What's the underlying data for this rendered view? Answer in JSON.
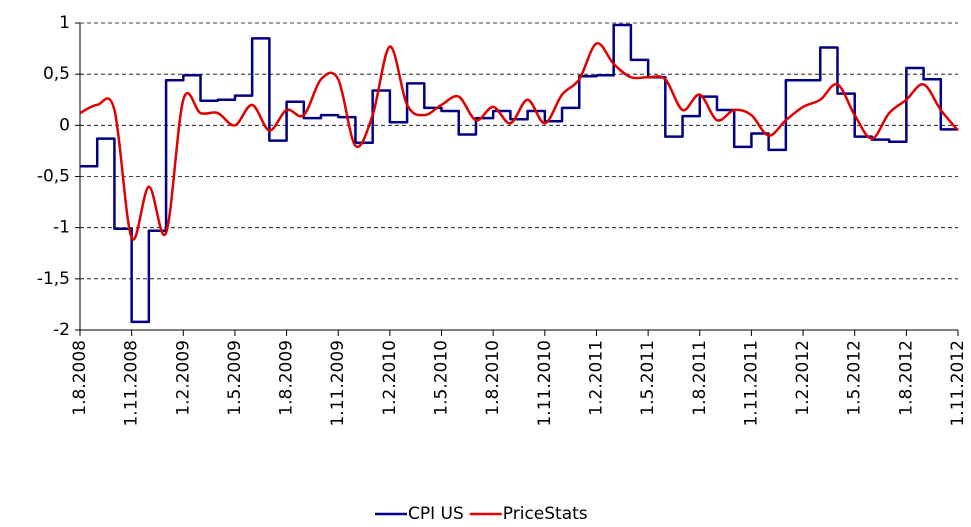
{
  "chart_data": {
    "type": "line",
    "xlim": [
      "1.8.2008",
      "1.11.2012"
    ],
    "xticks": [
      "1.8.2008",
      "1.11.2008",
      "1.2.2009",
      "1.5.2009",
      "1.8.2009",
      "1.11.2009",
      "1.2.2010",
      "1.5.2010",
      "1.8.2010",
      "1.11.2010",
      "1.2.2011",
      "1.5.2011",
      "1.8.2011",
      "1.11.2011",
      "1.2.2012",
      "1.5.2012",
      "1.8.2012",
      "1.11.2012"
    ],
    "ylim": [
      -2,
      1
    ],
    "yticks": [
      {
        "value": -2,
        "label": "-2"
      },
      {
        "value": -1.5,
        "label": "-1,5"
      },
      {
        "value": -1,
        "label": "-1"
      },
      {
        "value": -0.5,
        "label": "-0,5"
      },
      {
        "value": 0,
        "label": "0"
      },
      {
        "value": 0.5,
        "label": "0,5"
      },
      {
        "value": 1,
        "label": "1"
      }
    ],
    "grid": true,
    "legend": "bottom",
    "series": [
      {
        "name": "CPI US",
        "color": "#000080",
        "step": true,
        "x": [
          "1.8.2008",
          "1.9.2008",
          "1.10.2008",
          "1.11.2008",
          "1.12.2008",
          "1.1.2009",
          "1.2.2009",
          "1.3.2009",
          "1.4.2009",
          "1.5.2009",
          "1.6.2009",
          "1.7.2009",
          "1.8.2009",
          "1.9.2009",
          "1.10.2009",
          "1.11.2009",
          "1.12.2009",
          "1.1.2010",
          "1.2.2010",
          "1.3.2010",
          "1.4.2010",
          "1.5.2010",
          "1.6.2010",
          "1.7.2010",
          "1.8.2010",
          "1.9.2010",
          "1.10.2010",
          "1.11.2010",
          "1.12.2010",
          "1.1.2011",
          "1.2.2011",
          "1.3.2011",
          "1.4.2011",
          "1.5.2011",
          "1.6.2011",
          "1.7.2011",
          "1.8.2011",
          "1.9.2011",
          "1.10.2011",
          "1.11.2011",
          "1.12.2011",
          "1.1.2012",
          "1.2.2012",
          "1.3.2012",
          "1.4.2012",
          "1.5.2012",
          "1.6.2012",
          "1.7.2012",
          "1.8.2012",
          "1.9.2012",
          "1.10.2012"
        ],
        "values": [
          -0.4,
          -0.13,
          -1.01,
          -1.92,
          -1.03,
          0.44,
          0.49,
          0.24,
          0.25,
          0.29,
          0.85,
          -0.15,
          0.23,
          0.07,
          0.1,
          0.08,
          -0.17,
          0.34,
          0.03,
          0.41,
          0.17,
          0.14,
          -0.09,
          0.07,
          0.14,
          0.06,
          0.14,
          0.04,
          0.17,
          0.48,
          0.49,
          0.98,
          0.64,
          0.47,
          -0.11,
          0.09,
          0.28,
          0.15,
          -0.21,
          -0.08,
          -0.24,
          0.44,
          0.44,
          0.76,
          0.31,
          -0.11,
          -0.14,
          -0.16,
          0.56,
          0.45,
          -0.04
        ]
      },
      {
        "name": "PriceStats",
        "color": "#e00000",
        "x": [
          "1.8.2008",
          "1.9.2008",
          "1.10.2008",
          "1.11.2008",
          "1.12.2008",
          "1.1.2009",
          "1.2.2009",
          "1.3.2009",
          "1.4.2009",
          "1.5.2009",
          "1.6.2009",
          "1.7.2009",
          "1.8.2009",
          "1.9.2009",
          "1.10.2009",
          "1.11.2009",
          "1.12.2009",
          "1.1.2010",
          "1.2.2010",
          "1.3.2010",
          "1.4.2010",
          "1.5.2010",
          "1.6.2010",
          "1.7.2010",
          "1.8.2010",
          "1.9.2010",
          "1.10.2010",
          "1.11.2010",
          "1.12.2010",
          "1.1.2011",
          "1.2.2011",
          "1.3.2011",
          "1.4.2011",
          "1.5.2011",
          "1.6.2011",
          "1.7.2011",
          "1.8.2011",
          "1.9.2011",
          "1.10.2011",
          "1.11.2011",
          "1.12.2011",
          "1.1.2012",
          "1.2.2012",
          "1.3.2012",
          "1.4.2012",
          "1.5.2012",
          "1.6.2012",
          "1.7.2012",
          "1.8.2012",
          "1.9.2012",
          "1.10.2012",
          "1.11.2012"
        ],
        "values": [
          0.12,
          0.2,
          0.15,
          -1.1,
          -0.6,
          -1.05,
          0.25,
          0.12,
          0.12,
          0.0,
          0.2,
          -0.05,
          0.15,
          0.1,
          0.45,
          0.45,
          -0.2,
          0.1,
          0.77,
          0.2,
          0.1,
          0.2,
          0.28,
          0.05,
          0.18,
          0.02,
          0.25,
          0.02,
          0.3,
          0.45,
          0.8,
          0.6,
          0.47,
          0.47,
          0.45,
          0.15,
          0.3,
          0.05,
          0.15,
          0.1,
          -0.1,
          0.05,
          0.18,
          0.25,
          0.4,
          0.1,
          -0.13,
          0.12,
          0.25,
          0.4,
          0.15,
          -0.05
        ]
      }
    ]
  }
}
